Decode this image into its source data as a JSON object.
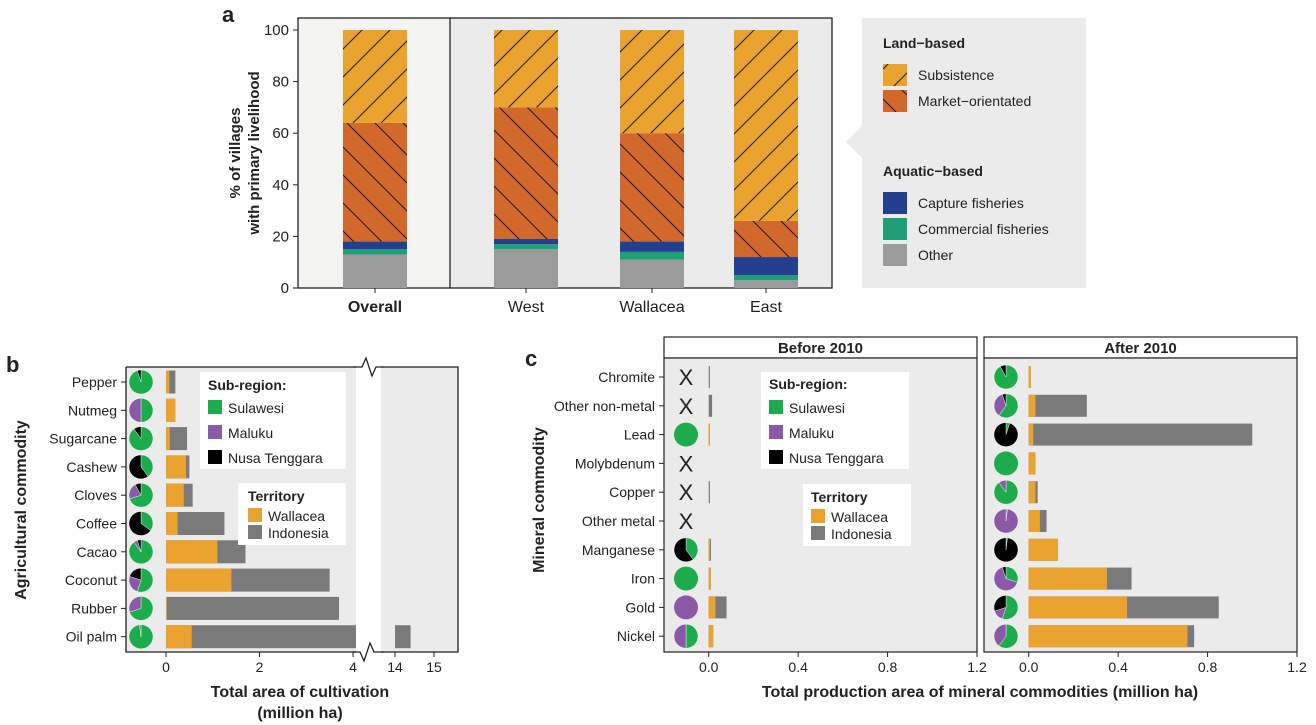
{
  "chart_data": [
    {
      "panel": "a",
      "type": "bar",
      "stacked": true,
      "categories": [
        "Overall",
        "West",
        "Wallacea",
        "East"
      ],
      "ylabel": "% of villages\nwith primary livelihood",
      "ylim": [
        0,
        100
      ],
      "yticks": [
        0,
        20,
        40,
        60,
        80,
        100
      ],
      "series": [
        {
          "name": "Other",
          "group": "Aquatic−based",
          "color": "#9b9b9b",
          "values": [
            13,
            15,
            11,
            3
          ]
        },
        {
          "name": "Commercial fisheries",
          "group": "Aquatic−based",
          "color": "#1f9e77",
          "values": [
            2,
            2,
            3,
            2
          ]
        },
        {
          "name": "Capture fisheries",
          "group": "Aquatic−based",
          "color": "#233f8f",
          "values": [
            3,
            2,
            4,
            7
          ]
        },
        {
          "name": "Market−orientated",
          "group": "Land−based",
          "color": "#d2682a",
          "values": [
            46,
            51,
            42,
            14
          ]
        },
        {
          "name": "Subsistence",
          "group": "Land−based",
          "color": "#e9a32e",
          "values": [
            36,
            30,
            40,
            74
          ]
        }
      ],
      "legend": {
        "groups": [
          {
            "title": "Land−based",
            "items": [
              "Subsistence",
              "Market−orientated"
            ]
          },
          {
            "title": "Aquatic−based",
            "items": [
              "Capture fisheries",
              "Commercial fisheries",
              "Other"
            ]
          }
        ]
      }
    },
    {
      "panel": "b",
      "type": "bar",
      "orientation": "horizontal",
      "ylabel": "Agricultural commodity",
      "xlabel": "Total area of cultivation\n(million ha)",
      "xticks_left": [
        0,
        2,
        4
      ],
      "xticks_right": [
        14,
        15
      ],
      "axis_break": [
        4.7,
        13.7
      ],
      "xlim": [
        -0.55,
        15.8
      ],
      "categories": [
        "Pepper",
        "Nutmeg",
        "Sugarcane",
        "Cashew",
        "Cloves",
        "Coffee",
        "Cacao",
        "Coconut",
        "Rubber",
        "Oil palm"
      ],
      "series": [
        {
          "name": "Wallacea",
          "color": "#e9a32e",
          "values": [
            0.07,
            0.2,
            0.08,
            0.43,
            0.38,
            0.25,
            1.1,
            1.4,
            0.02,
            0.55
          ]
        },
        {
          "name": "Indonesia",
          "color": "#7a7a7a",
          "values": [
            0.2,
            0.2,
            0.45,
            0.5,
            0.57,
            1.25,
            1.7,
            3.5,
            3.7,
            14.4
          ]
        }
      ],
      "pies": [
        {
          "category": "Pepper",
          "Sulawesi": 0.95,
          "Maluku": 0.0,
          "Nusa Tenggara": 0.05
        },
        {
          "category": "Nutmeg",
          "Sulawesi": 0.5,
          "Maluku": 0.5,
          "Nusa Tenggara": 0.0
        },
        {
          "category": "Sugarcane",
          "Sulawesi": 0.9,
          "Maluku": 0.0,
          "Nusa Tenggara": 0.1
        },
        {
          "category": "Cashew",
          "Sulawesi": 0.4,
          "Maluku": 0.0,
          "Nusa Tenggara": 0.6
        },
        {
          "category": "Cloves",
          "Sulawesi": 0.7,
          "Maluku": 0.22,
          "Nusa Tenggara": 0.08
        },
        {
          "category": "Coffee",
          "Sulawesi": 0.35,
          "Maluku": 0.0,
          "Nusa Tenggara": 0.65
        },
        {
          "category": "Cacao",
          "Sulawesi": 0.9,
          "Maluku": 0.05,
          "Nusa Tenggara": 0.05
        },
        {
          "category": "Coconut",
          "Sulawesi": 0.55,
          "Maluku": 0.25,
          "Nusa Tenggara": 0.2
        },
        {
          "category": "Rubber",
          "Sulawesi": 0.7,
          "Maluku": 0.3,
          "Nusa Tenggara": 0.0
        },
        {
          "category": "Oil palm",
          "Sulawesi": 0.98,
          "Maluku": 0.02,
          "Nusa Tenggara": 0.0
        }
      ],
      "legend": {
        "subregion_title": "Sub-region:",
        "subregions": [
          {
            "name": "Sulawesi",
            "color": "#1cac4b"
          },
          {
            "name": "Maluku",
            "color": "#8a5aa8"
          },
          {
            "name": "Nusa Tenggara",
            "color": "#000000"
          }
        ],
        "territory_title": "Territory"
      }
    },
    {
      "panel": "c",
      "type": "bar",
      "orientation": "horizontal",
      "facets": [
        "Before 2010",
        "After 2010"
      ],
      "ylabel": "Mineral commodity",
      "xlabel": "Total production area of mineral commodities (million ha)",
      "xlim": [
        -0.2,
        1.2
      ],
      "xticks": [
        0.0,
        0.4,
        0.8,
        1.2
      ],
      "xtick_labels": [
        "0.0",
        "0.4",
        "0.8",
        "1.2"
      ],
      "categories": [
        "Chromite",
        "Other non-metal",
        "Lead",
        "Molybdenum",
        "Copper",
        "Other metal",
        "Manganese",
        "Iron",
        "Gold",
        "Nickel"
      ],
      "before_2010": {
        "Wallacea": [
          0.0,
          0.0,
          0.005,
          0.0,
          0.0,
          0.0,
          0.005,
          0.01,
          0.03,
          0.02
        ],
        "Indonesia": [
          0.005,
          0.015,
          0.005,
          0.0,
          0.005,
          0.0,
          0.01,
          0.01,
          0.08,
          0.02
        ],
        "pies": [
          "X",
          "X",
          {
            "Sulawesi": 1.0,
            "Maluku": 0.0,
            "Nusa Tenggara": 0.0
          },
          "X",
          "X",
          "X",
          {
            "Sulawesi": 0.4,
            "Maluku": 0.0,
            "Nusa Tenggara": 0.6
          },
          {
            "Sulawesi": 1.0,
            "Maluku": 0.0,
            "Nusa Tenggara": 0.0
          },
          {
            "Sulawesi": 0.0,
            "Maluku": 1.0,
            "Nusa Tenggara": 0.0
          },
          {
            "Sulawesi": 0.5,
            "Maluku": 0.5,
            "Nusa Tenggara": 0.0
          }
        ]
      },
      "after_2010": {
        "Wallacea": [
          0.01,
          0.03,
          0.02,
          0.03,
          0.03,
          0.05,
          0.13,
          0.35,
          0.44,
          0.71
        ],
        "Indonesia": [
          0.01,
          0.26,
          1.0,
          0.03,
          0.04,
          0.08,
          0.13,
          0.46,
          0.85,
          0.74
        ],
        "pies": [
          {
            "Sulawesi": 0.92,
            "Maluku": 0.0,
            "Nusa Tenggara": 0.08
          },
          {
            "Sulawesi": 0.6,
            "Maluku": 0.35,
            "Nusa Tenggara": 0.05
          },
          {
            "Sulawesi": 0.05,
            "Maluku": 0.0,
            "Nusa Tenggara": 0.95
          },
          {
            "Sulawesi": 1.0,
            "Maluku": 0.0,
            "Nusa Tenggara": 0.0
          },
          {
            "Sulawesi": 0.9,
            "Maluku": 0.1,
            "Nusa Tenggara": 0.0
          },
          {
            "Sulawesi": 0.02,
            "Maluku": 0.98,
            "Nusa Tenggara": 0.0
          },
          {
            "Sulawesi": 0.02,
            "Maluku": 0.0,
            "Nusa Tenggara": 0.98
          },
          {
            "Sulawesi": 0.3,
            "Maluku": 0.65,
            "Nusa Tenggara": 0.05
          },
          {
            "Sulawesi": 0.55,
            "Maluku": 0.15,
            "Nusa Tenggara": 0.3
          },
          {
            "Sulawesi": 0.6,
            "Maluku": 0.4,
            "Nusa Tenggara": 0.0
          }
        ]
      },
      "legend": {
        "subregion_title": "Sub-region:",
        "subregions": [
          {
            "name": "Sulawesi",
            "color": "#1cac4b"
          },
          {
            "name": "Maluku",
            "color": "#8a5aa8"
          },
          {
            "name": "Nusa Tenggara",
            "color": "#000000"
          }
        ],
        "territory_title": "Territory",
        "territories": [
          {
            "name": "Wallacea",
            "color": "#e9a32e"
          },
          {
            "name": "Indonesia",
            "color": "#7a7a7a"
          }
        ]
      }
    }
  ],
  "panel_labels": {
    "a": "a",
    "b": "b",
    "c": "c"
  },
  "missing_marker": "X"
}
